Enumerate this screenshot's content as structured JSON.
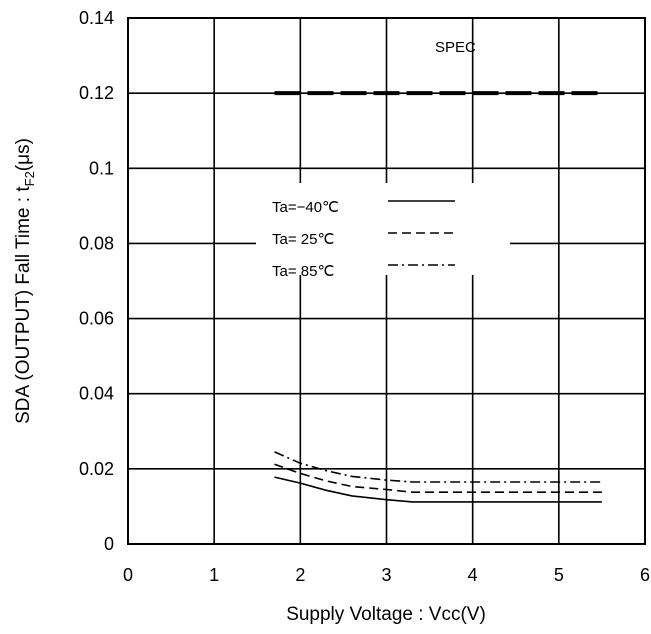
{
  "chart_data": {
    "type": "line",
    "xlabel": "Supply Voltage : Vcc(V)",
    "ylabel_main": "SDA (OUTPUT) Fall Time : t",
    "ylabel_sub": "F2",
    "ylabel_unit": "(μs)",
    "xlim": [
      0,
      6
    ],
    "ylim": [
      0,
      0.14
    ],
    "x_ticks": [
      0,
      1,
      2,
      3,
      4,
      5,
      6
    ],
    "x_tick_labels": [
      "0",
      "1",
      "2",
      "3",
      "4",
      "5",
      "6"
    ],
    "y_ticks": [
      0,
      0.02,
      0.04,
      0.06,
      0.08,
      0.1,
      0.12,
      0.14
    ],
    "y_tick_labels": [
      "0",
      "0.02",
      "0.04",
      "0.06",
      "0.08",
      "0.1",
      "0.12",
      "0.14"
    ],
    "grid": true,
    "legend_placement": "upper-left-center",
    "annotation": {
      "text": "SPEC",
      "x": 3.8,
      "y": 0.131,
      "line": {
        "x": [
          1.7,
          5.5
        ],
        "y": [
          0.12,
          0.12
        ]
      }
    },
    "series": [
      {
        "name": "Ta=−40℃",
        "style": "solid",
        "x": [
          1.7,
          2.0,
          2.3,
          2.6,
          3.0,
          3.3,
          5.5
        ],
        "y": [
          0.0178,
          0.0162,
          0.0143,
          0.0128,
          0.0118,
          0.0112,
          0.0112
        ]
      },
      {
        "name": "Ta= 25℃",
        "style": "dash",
        "x": [
          1.7,
          2.0,
          2.3,
          2.6,
          3.0,
          3.3,
          5.5
        ],
        "y": [
          0.0212,
          0.0188,
          0.0168,
          0.0153,
          0.0145,
          0.0138,
          0.0138
        ]
      },
      {
        "name": "Ta= 85℃",
        "style": "dashdot",
        "x": [
          1.7,
          2.0,
          2.3,
          2.6,
          3.0,
          3.3,
          5.5
        ],
        "y": [
          0.0245,
          0.0215,
          0.0195,
          0.018,
          0.017,
          0.0165,
          0.0165
        ]
      }
    ]
  }
}
